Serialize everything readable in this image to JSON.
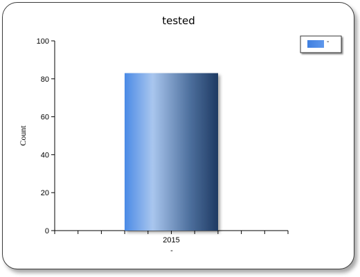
{
  "chart_data": {
    "type": "bar",
    "title": "tested",
    "xlabel": "-",
    "ylabel": "Count",
    "categories": [
      "2015"
    ],
    "series": [
      {
        "name": "-",
        "values": [
          83
        ]
      }
    ],
    "ylim": [
      0,
      100
    ],
    "yticks": [
      0,
      20,
      40,
      60,
      80,
      100
    ],
    "grid": false,
    "legend_position": "top-right",
    "colors": {
      "bar_light": "#a9c6ee",
      "bar_mid": "#4a8ae6",
      "bar_dark": "#1e3a62"
    }
  }
}
